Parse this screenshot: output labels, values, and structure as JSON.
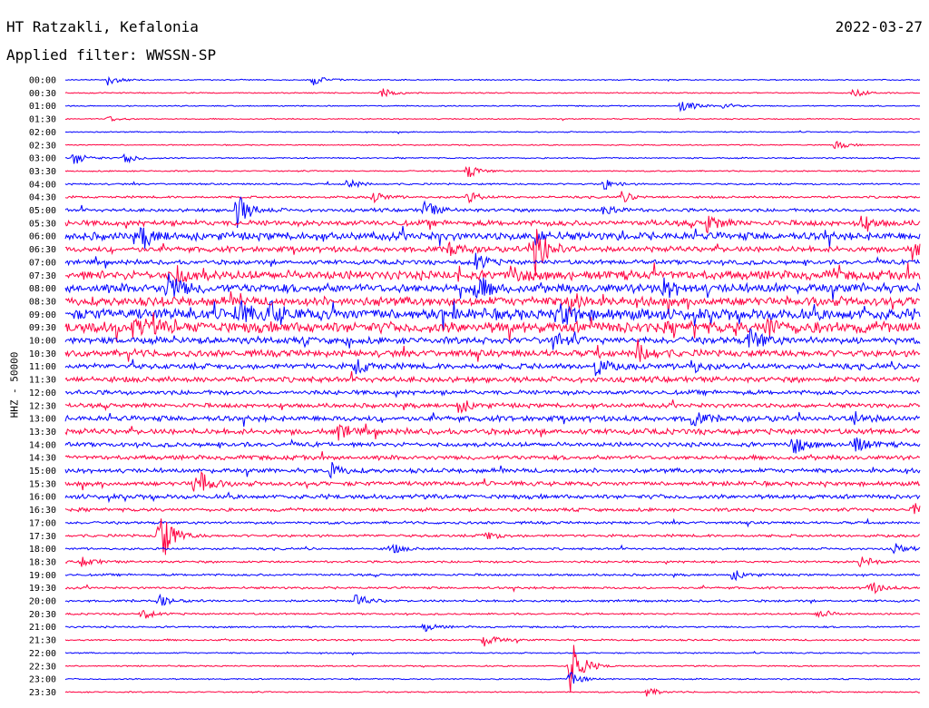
{
  "header": {
    "station": "HT Ratzakli, Kefalonia",
    "date": "2022-03-27",
    "filter": "Applied filter: WWSSN-SP"
  },
  "colors": {
    "trace_a": "#0000ff",
    "trace_b": "#ff0040"
  },
  "chart_data": {
    "type": "helicorder",
    "ylabel": "HHZ - 50000",
    "row_labels": [
      "00:00",
      "00:30",
      "01:00",
      "01:30",
      "02:00",
      "02:30",
      "03:00",
      "03:30",
      "04:00",
      "04:30",
      "05:00",
      "05:30",
      "06:00",
      "06:30",
      "07:00",
      "07:30",
      "08:00",
      "08:30",
      "09:00",
      "09:30",
      "10:00",
      "10:30",
      "11:00",
      "11:30",
      "12:00",
      "12:30",
      "13:00",
      "13:30",
      "14:00",
      "14:30",
      "15:00",
      "15:30",
      "16:00",
      "16:30",
      "17:00",
      "17:30",
      "18:00",
      "18:30",
      "19:00",
      "19:30",
      "20:00",
      "20:30",
      "21:00",
      "21:30",
      "22:00",
      "22:30",
      "23:00",
      "23:30"
    ],
    "row_colors": [
      "trace_a",
      "trace_b"
    ],
    "noise_level": [
      0.5,
      0.5,
      0.5,
      0.5,
      0.5,
      0.5,
      0.6,
      0.6,
      0.8,
      1.0,
      1.5,
      2.5,
      3.5,
      2.5,
      2.0,
      4.0,
      4.0,
      4.0,
      5.0,
      5.0,
      3.0,
      3.0,
      2.5,
      2.5,
      2.0,
      2.0,
      2.5,
      2.5,
      2.0,
      2.0,
      2.0,
      2.0,
      2.0,
      1.5,
      1.2,
      1.2,
      1.0,
      1.0,
      1.0,
      1.0,
      1.0,
      0.8,
      0.8,
      0.8,
      0.6,
      0.6,
      0.6,
      0.6
    ],
    "events": [
      {
        "row": 0,
        "t": 0.05,
        "amp": 6
      },
      {
        "row": 0,
        "t": 0.29,
        "amp": 6
      },
      {
        "row": 1,
        "t": 0.37,
        "amp": 6
      },
      {
        "row": 1,
        "t": 0.92,
        "amp": 6
      },
      {
        "row": 2,
        "t": 0.72,
        "amp": 9
      },
      {
        "row": 2,
        "t": 0.77,
        "amp": 4
      },
      {
        "row": 3,
        "t": 0.05,
        "amp": 3
      },
      {
        "row": 5,
        "t": 0.9,
        "amp": 5
      },
      {
        "row": 6,
        "t": 0.01,
        "amp": 8
      },
      {
        "row": 6,
        "t": 0.07,
        "amp": 6
      },
      {
        "row": 7,
        "t": 0.47,
        "amp": 8
      },
      {
        "row": 8,
        "t": 0.33,
        "amp": 6
      },
      {
        "row": 8,
        "t": 0.63,
        "amp": 6
      },
      {
        "row": 9,
        "t": 0.36,
        "amp": 6
      },
      {
        "row": 9,
        "t": 0.47,
        "amp": 6
      },
      {
        "row": 9,
        "t": 0.65,
        "amp": 6
      },
      {
        "row": 10,
        "t": 0.2,
        "amp": 22
      },
      {
        "row": 10,
        "t": 0.42,
        "amp": 10
      },
      {
        "row": 10,
        "t": 0.63,
        "amp": 8
      },
      {
        "row": 11,
        "t": 0.75,
        "amp": 10
      },
      {
        "row": 11,
        "t": 0.93,
        "amp": 8
      },
      {
        "row": 12,
        "t": 0.09,
        "amp": 12
      },
      {
        "row": 12,
        "t": 0.55,
        "amp": 8
      },
      {
        "row": 13,
        "t": 0.55,
        "amp": 32
      },
      {
        "row": 13,
        "t": 0.45,
        "amp": 8
      },
      {
        "row": 13,
        "t": 0.99,
        "amp": 10
      },
      {
        "row": 14,
        "t": 0.48,
        "amp": 10
      },
      {
        "row": 15,
        "t": 0.13,
        "amp": 10
      },
      {
        "row": 15,
        "t": 0.52,
        "amp": 10
      },
      {
        "row": 16,
        "t": 0.12,
        "amp": 18
      },
      {
        "row": 16,
        "t": 0.48,
        "amp": 14
      },
      {
        "row": 16,
        "t": 0.7,
        "amp": 10
      },
      {
        "row": 17,
        "t": 0.59,
        "amp": 12
      },
      {
        "row": 18,
        "t": 0.2,
        "amp": 14
      },
      {
        "row": 18,
        "t": 0.24,
        "amp": 14
      },
      {
        "row": 18,
        "t": 0.58,
        "amp": 12
      },
      {
        "row": 19,
        "t": 0.08,
        "amp": 10
      },
      {
        "row": 19,
        "t": 0.82,
        "amp": 10
      },
      {
        "row": 20,
        "t": 0.8,
        "amp": 16
      },
      {
        "row": 20,
        "t": 0.57,
        "amp": 8
      },
      {
        "row": 21,
        "t": 0.67,
        "amp": 16
      },
      {
        "row": 22,
        "t": 0.34,
        "amp": 8
      },
      {
        "row": 22,
        "t": 0.62,
        "amp": 10
      },
      {
        "row": 22,
        "t": 0.73,
        "amp": 8
      },
      {
        "row": 25,
        "t": 0.46,
        "amp": 8
      },
      {
        "row": 26,
        "t": 0.73,
        "amp": 10
      },
      {
        "row": 26,
        "t": 0.92,
        "amp": 8
      },
      {
        "row": 27,
        "t": 0.32,
        "amp": 8
      },
      {
        "row": 28,
        "t": 0.85,
        "amp": 12
      },
      {
        "row": 28,
        "t": 0.92,
        "amp": 12
      },
      {
        "row": 30,
        "t": 0.31,
        "amp": 8
      },
      {
        "row": 31,
        "t": 0.15,
        "amp": 8
      },
      {
        "row": 31,
        "t": 0.16,
        "amp": 8
      },
      {
        "row": 33,
        "t": 0.99,
        "amp": 8
      },
      {
        "row": 35,
        "t": 0.11,
        "amp": 36
      },
      {
        "row": 35,
        "t": 0.49,
        "amp": 6
      },
      {
        "row": 36,
        "t": 0.38,
        "amp": 6
      },
      {
        "row": 36,
        "t": 0.97,
        "amp": 6
      },
      {
        "row": 37,
        "t": 0.02,
        "amp": 6
      },
      {
        "row": 37,
        "t": 0.93,
        "amp": 8
      },
      {
        "row": 38,
        "t": 0.78,
        "amp": 6
      },
      {
        "row": 39,
        "t": 0.94,
        "amp": 8
      },
      {
        "row": 40,
        "t": 0.11,
        "amp": 6
      },
      {
        "row": 40,
        "t": 0.34,
        "amp": 8
      },
      {
        "row": 41,
        "t": 0.09,
        "amp": 6
      },
      {
        "row": 41,
        "t": 0.88,
        "amp": 6
      },
      {
        "row": 42,
        "t": 0.42,
        "amp": 5
      },
      {
        "row": 43,
        "t": 0.49,
        "amp": 8
      },
      {
        "row": 45,
        "t": 0.59,
        "amp": 34
      },
      {
        "row": 46,
        "t": 0.59,
        "amp": 8
      },
      {
        "row": 47,
        "t": 0.68,
        "amp": 5
      }
    ]
  }
}
